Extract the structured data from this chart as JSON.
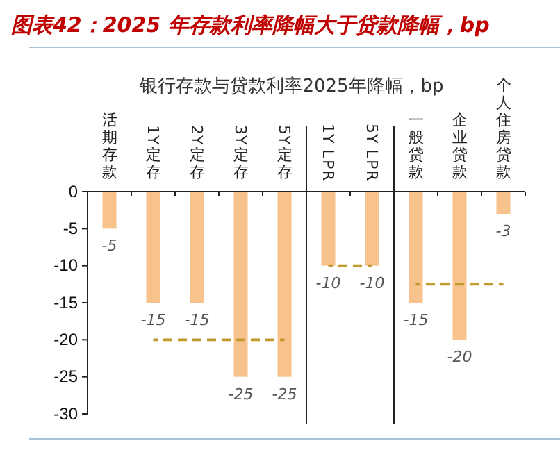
{
  "chart_data": {
    "type": "bar",
    "title": "图表42：2025 年存款利率降幅大于贷款降幅，bp",
    "subtitle": "银行存款与贷款利率2025年降幅，bp",
    "categories": [
      "活期存款",
      "1Y定存",
      "2Y定存",
      "3Y定存",
      "5Y定存",
      "1Y LPR",
      "5Y LPR",
      "一般贷款",
      "企业贷款",
      "个人住房贷款"
    ],
    "series": [
      {
        "color": "#f8c28c",
        "values": [
          -5,
          -15,
          -15,
          -25,
          -25,
          -10,
          -10,
          -15,
          -20,
          -3
        ],
        "value_labels": [
          "-5",
          "-15",
          "-15",
          "-25",
          "-25",
          "-10",
          "-10",
          "-15",
          "-20",
          "-3"
        ]
      },
      {
        "type": "line",
        "color": "#c09a2c",
        "line_style": "dashed",
        "values": [
          null,
          -20,
          -20,
          -20,
          -20,
          null,
          null,
          null,
          null,
          null
        ]
      },
      {
        "type": "line",
        "color": "#c09a2c",
        "line_style": "dashed",
        "values": [
          null,
          null,
          null,
          null,
          null,
          -10,
          -10,
          null,
          null,
          null
        ]
      },
      {
        "type": "line",
        "color": "#c09a2c",
        "line_style": "dashed",
        "values": [
          null,
          null,
          null,
          null,
          null,
          null,
          null,
          -12.5,
          -12.5,
          -12.5
        ]
      }
    ],
    "grid": false,
    "ylim": [
      -30,
      0
    ],
    "yticks": [
      -30,
      -25,
      -20,
      -15,
      -10,
      -5,
      0
    ]
  }
}
